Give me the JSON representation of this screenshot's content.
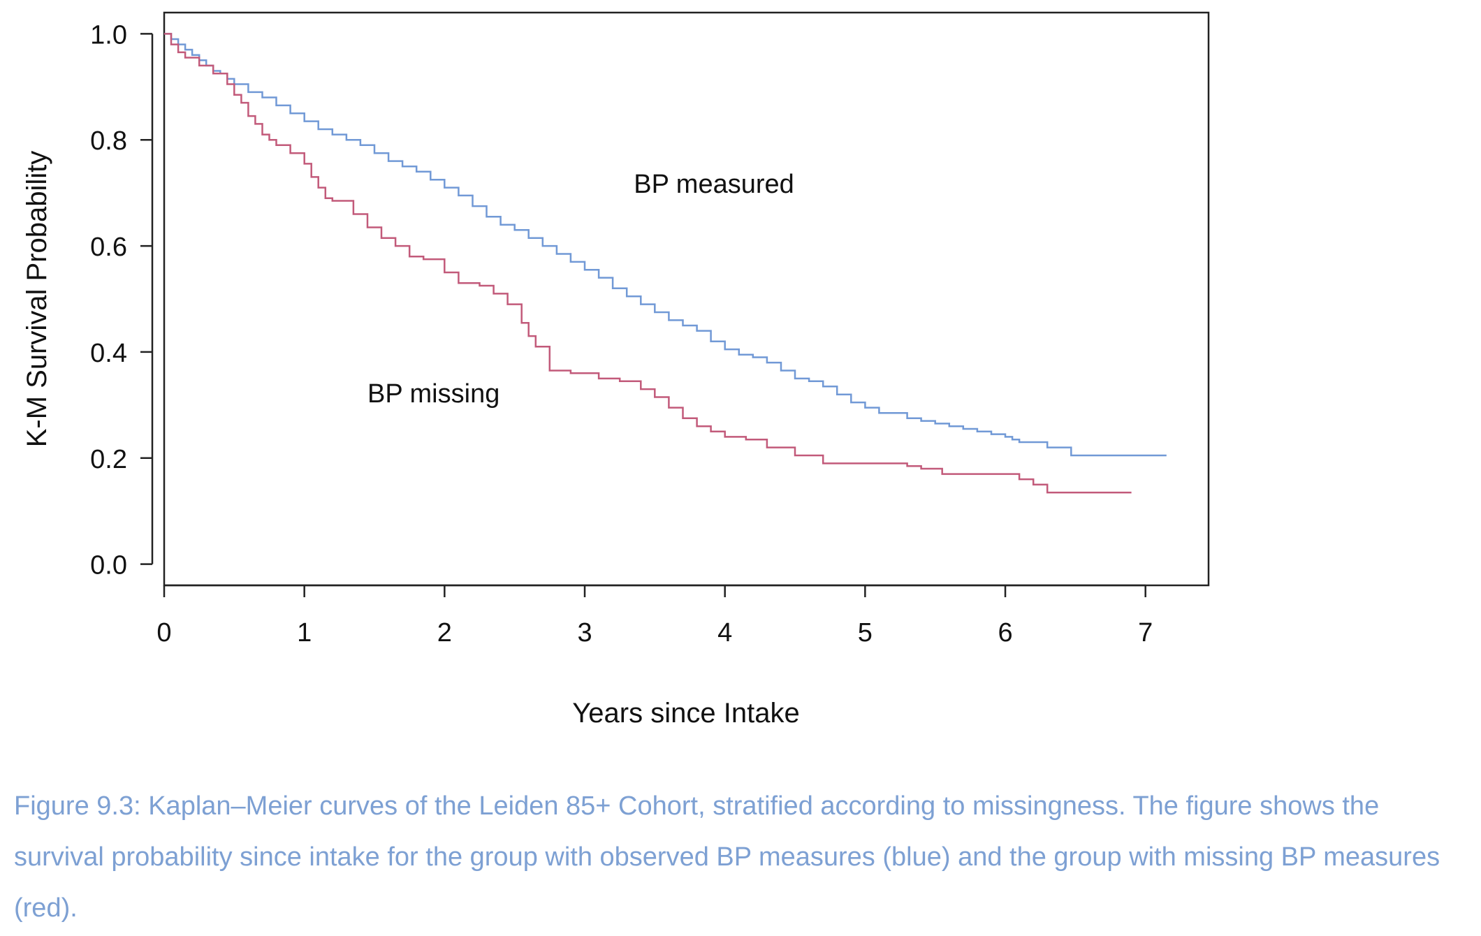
{
  "chart_data": {
    "type": "line",
    "step": true,
    "xlabel": "Years since Intake",
    "ylabel": "K-M Survival Probability",
    "xlim": [
      0,
      7.45
    ],
    "ylim": [
      -0.04,
      1.04
    ],
    "x_ticks": [
      0,
      1,
      2,
      3,
      4,
      5,
      6,
      7
    ],
    "x_tick_labels": [
      "0",
      "1",
      "2",
      "3",
      "4",
      "5",
      "6",
      "7"
    ],
    "y_ticks": [
      0.0,
      0.2,
      0.4,
      0.6,
      0.8,
      1.0
    ],
    "y_tick_labels": [
      "0.0",
      "0.2",
      "0.4",
      "0.6",
      "0.8",
      "1.0"
    ],
    "grid": false,
    "series": [
      {
        "name": "BP measured",
        "color": "#7199d6",
        "x": [
          0,
          0.05,
          0.1,
          0.15,
          0.2,
          0.25,
          0.3,
          0.35,
          0.4,
          0.45,
          0.5,
          0.6,
          0.7,
          0.8,
          0.9,
          1.0,
          1.1,
          1.2,
          1.3,
          1.4,
          1.5,
          1.6,
          1.7,
          1.8,
          1.9,
          2.0,
          2.1,
          2.2,
          2.3,
          2.4,
          2.5,
          2.6,
          2.7,
          2.8,
          2.9,
          3.0,
          3.1,
          3.2,
          3.3,
          3.4,
          3.5,
          3.6,
          3.7,
          3.8,
          3.9,
          4.0,
          4.1,
          4.2,
          4.3,
          4.4,
          4.5,
          4.6,
          4.7,
          4.8,
          4.9,
          5.0,
          5.1,
          5.2,
          5.3,
          5.4,
          5.5,
          5.6,
          5.7,
          5.8,
          5.9,
          6.0,
          6.05,
          6.1,
          6.2,
          6.3,
          6.4,
          6.47,
          6.55,
          6.7,
          6.9,
          7.0,
          7.15
        ],
        "y": [
          1.0,
          0.99,
          0.98,
          0.97,
          0.96,
          0.95,
          0.94,
          0.93,
          0.925,
          0.915,
          0.905,
          0.89,
          0.88,
          0.865,
          0.85,
          0.835,
          0.82,
          0.81,
          0.8,
          0.79,
          0.775,
          0.76,
          0.75,
          0.74,
          0.725,
          0.71,
          0.695,
          0.675,
          0.655,
          0.64,
          0.63,
          0.615,
          0.6,
          0.585,
          0.57,
          0.555,
          0.54,
          0.52,
          0.505,
          0.49,
          0.475,
          0.46,
          0.45,
          0.44,
          0.42,
          0.405,
          0.395,
          0.39,
          0.38,
          0.365,
          0.35,
          0.345,
          0.335,
          0.32,
          0.305,
          0.295,
          0.285,
          0.285,
          0.275,
          0.27,
          0.265,
          0.26,
          0.255,
          0.25,
          0.245,
          0.24,
          0.235,
          0.23,
          0.23,
          0.22,
          0.22,
          0.205,
          0.205,
          0.205,
          0.205,
          0.205,
          0.205
        ]
      },
      {
        "name": "BP missing",
        "color": "#c25a7a",
        "x": [
          0,
          0.05,
          0.1,
          0.15,
          0.25,
          0.35,
          0.45,
          0.5,
          0.55,
          0.6,
          0.65,
          0.7,
          0.75,
          0.8,
          0.9,
          1.0,
          1.05,
          1.1,
          1.15,
          1.2,
          1.35,
          1.45,
          1.55,
          1.65,
          1.75,
          1.85,
          2.0,
          2.1,
          2.25,
          2.35,
          2.45,
          2.55,
          2.6,
          2.65,
          2.75,
          2.9,
          3.1,
          3.25,
          3.4,
          3.5,
          3.6,
          3.7,
          3.8,
          3.9,
          4.0,
          4.15,
          4.3,
          4.5,
          4.7,
          5.0,
          5.3,
          5.4,
          5.55,
          5.8,
          6.0,
          6.1,
          6.2,
          6.3,
          6.45,
          6.6,
          6.9
        ],
        "y": [
          1.0,
          0.98,
          0.965,
          0.955,
          0.94,
          0.925,
          0.905,
          0.885,
          0.87,
          0.845,
          0.83,
          0.81,
          0.8,
          0.79,
          0.775,
          0.755,
          0.73,
          0.71,
          0.69,
          0.685,
          0.66,
          0.635,
          0.615,
          0.6,
          0.58,
          0.575,
          0.55,
          0.53,
          0.525,
          0.51,
          0.49,
          0.455,
          0.43,
          0.41,
          0.365,
          0.36,
          0.35,
          0.345,
          0.33,
          0.315,
          0.295,
          0.275,
          0.26,
          0.25,
          0.24,
          0.235,
          0.22,
          0.205,
          0.19,
          0.19,
          0.185,
          0.18,
          0.17,
          0.17,
          0.17,
          0.16,
          0.15,
          0.135,
          0.135,
          0.135,
          0.135
        ]
      }
    ],
    "annotations": [
      {
        "text": "BP measured",
        "x": 3.35,
        "y": 0.7
      },
      {
        "text": "BP missing",
        "x": 1.45,
        "y": 0.305
      }
    ]
  },
  "caption": "Figure 9.3: Kaplan–Meier curves of the Leiden 85+ Cohort, stratified according to missingness. The figure shows the survival probability since intake for the group with observed BP measures (blue) and the group with missing BP measures (red)."
}
